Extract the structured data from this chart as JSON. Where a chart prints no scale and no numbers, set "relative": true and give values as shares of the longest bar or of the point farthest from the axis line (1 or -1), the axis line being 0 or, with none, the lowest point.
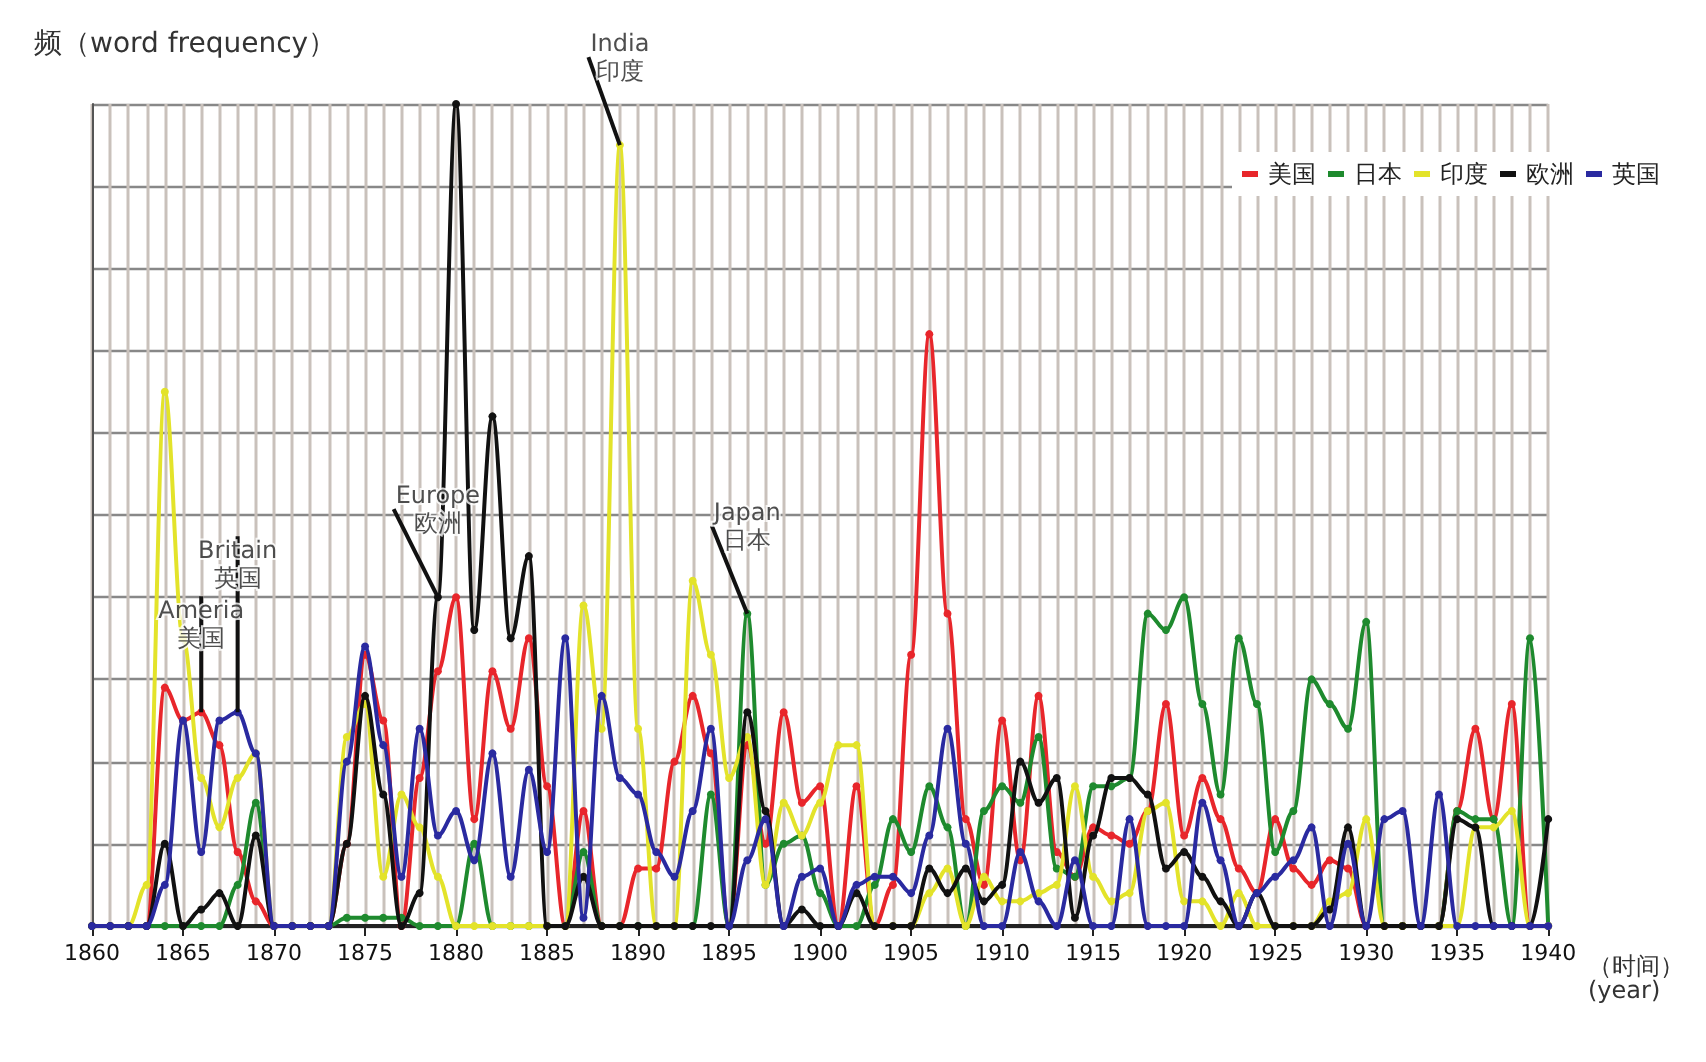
{
  "chart_data": {
    "type": "line",
    "title": "频（word frequency）",
    "xlabel": "（时间）\n(year)",
    "relative": true,
    "x": [
      1860,
      1861,
      1862,
      1863,
      1864,
      1865,
      1866,
      1867,
      1868,
      1869,
      1870,
      1871,
      1872,
      1873,
      1874,
      1875,
      1876,
      1877,
      1878,
      1879,
      1880,
      1881,
      1882,
      1883,
      1884,
      1885,
      1886,
      1887,
      1888,
      1889,
      1890,
      1891,
      1892,
      1893,
      1894,
      1895,
      1896,
      1897,
      1898,
      1899,
      1900,
      1901,
      1902,
      1903,
      1904,
      1905,
      1906,
      1907,
      1908,
      1909,
      1910,
      1911,
      1912,
      1913,
      1914,
      1915,
      1916,
      1917,
      1918,
      1919,
      1920,
      1921,
      1922,
      1923,
      1924,
      1925,
      1926,
      1927,
      1928,
      1929,
      1930,
      1931,
      1932,
      1933,
      1934,
      1935,
      1936,
      1937,
      1938,
      1939,
      1940
    ],
    "xlim": [
      1860,
      1940
    ],
    "xticks": [
      1860,
      1865,
      1870,
      1875,
      1880,
      1885,
      1890,
      1895,
      1900,
      1905,
      1910,
      1915,
      1920,
      1925,
      1930,
      1935,
      1940
    ],
    "grid": true,
    "legend": "top right",
    "marker": "circle",
    "line_style": "solid",
    "series": [
      {
        "name": "美国",
        "color": "#e8262b",
        "values": [
          null,
          null,
          0,
          0,
          0.29,
          0.25,
          0.26,
          0.22,
          0.09,
          0.03,
          0,
          0,
          0,
          0,
          0.1,
          0.33,
          0.25,
          0,
          0.18,
          0.31,
          0.4,
          0.13,
          0.31,
          0.24,
          0.35,
          0.17,
          0,
          0.14,
          0,
          0,
          0.07,
          0.07,
          0.2,
          0.28,
          0.21,
          0,
          0.22,
          0.1,
          0.26,
          0.15,
          0.17,
          0,
          0.17,
          0,
          0.05,
          0.33,
          0.72,
          0.38,
          0.13,
          0.05,
          0.25,
          0.08,
          0.28,
          0.09,
          0.06,
          0.12,
          0.11,
          0.1,
          0.14,
          0.27,
          0.11,
          0.18,
          0.13,
          0.07,
          0.04,
          0.13,
          0.07,
          0.05,
          0.08,
          0.07,
          0,
          0,
          0,
          0,
          0,
          0.14,
          0.24,
          0.13,
          0.27,
          0,
          0
        ]
      },
      {
        "name": "日本",
        "color": "#1e8a2e",
        "values": [
          null,
          null,
          0,
          0,
          0,
          0,
          0,
          0,
          0.05,
          0.15,
          0,
          0,
          0,
          0,
          0.01,
          0.01,
          0.01,
          0.01,
          0,
          0,
          0,
          0.1,
          0,
          0,
          0,
          0,
          0,
          0.09,
          0,
          0,
          0,
          0,
          0,
          0,
          0.16,
          0,
          0.38,
          0.05,
          0.1,
          0.11,
          0.04,
          0,
          0,
          0.05,
          0.13,
          0.09,
          0.17,
          0.12,
          0,
          0.14,
          0.17,
          0.15,
          0.23,
          0.07,
          0.06,
          0.17,
          0.17,
          0.18,
          0.38,
          0.36,
          0.4,
          0.27,
          0.16,
          0.35,
          0.27,
          0.09,
          0.14,
          0.3,
          0.27,
          0.24,
          0.37,
          0,
          0,
          0,
          0,
          0.14,
          0.13,
          0.13,
          0,
          0.35,
          0
        ]
      },
      {
        "name": "印度",
        "color": "#e3e32a",
        "values": [
          0,
          0,
          0,
          0.05,
          0.65,
          0.35,
          0.18,
          0.12,
          0.18,
          0.21,
          0,
          0,
          0,
          0,
          0.23,
          0.27,
          0.06,
          0.16,
          0.12,
          0.06,
          0,
          0,
          0,
          0,
          0,
          0,
          0,
          0.39,
          0.24,
          0.95,
          0.24,
          0,
          0,
          0.42,
          0.33,
          0.18,
          0.23,
          0.05,
          0.15,
          0.11,
          0.15,
          0.22,
          0.22,
          0,
          0,
          0,
          0.04,
          0.07,
          0,
          0.06,
          0.03,
          0.03,
          0.04,
          0.05,
          0.17,
          0.06,
          0.03,
          0.04,
          0.14,
          0.15,
          0.03,
          0.03,
          0,
          0.04,
          0,
          0,
          0,
          0,
          0.03,
          0.04,
          0.13,
          0,
          0,
          0,
          0,
          0,
          0.12,
          0.12,
          0.14,
          0,
          0
        ]
      },
      {
        "name": "欧洲",
        "color": "#111111",
        "values": [
          0,
          0,
          0,
          0,
          0.1,
          0,
          0.02,
          0.04,
          0,
          0.11,
          0,
          0,
          0,
          0,
          0.1,
          0.28,
          0.16,
          0,
          0.04,
          0.4,
          1,
          0.36,
          0.62,
          0.35,
          0.45,
          0,
          0,
          0.06,
          0,
          0,
          0,
          0,
          0,
          0,
          0,
          0,
          0.26,
          0.14,
          0,
          0.02,
          0,
          0,
          0.04,
          0,
          0,
          0,
          0.07,
          0.04,
          0.07,
          0.03,
          0.05,
          0.2,
          0.15,
          0.18,
          0.01,
          0.11,
          0.18,
          0.18,
          0.16,
          0.07,
          0.09,
          0.06,
          0.03,
          0,
          0.04,
          0,
          0,
          0,
          0.02,
          0.12,
          0,
          0,
          0,
          0,
          0,
          0.13,
          0.12,
          0,
          0,
          0,
          0.13
        ]
      },
      {
        "name": "英国",
        "color": "#2a2aa0",
        "values": [
          0,
          0,
          0,
          0,
          0.05,
          0.25,
          0.09,
          0.25,
          0.26,
          0.21,
          0,
          0,
          0,
          0,
          0.2,
          0.34,
          0.22,
          0.06,
          0.24,
          0.11,
          0.14,
          0.08,
          0.21,
          0.06,
          0.19,
          0.09,
          0.35,
          0.01,
          0.28,
          0.18,
          0.16,
          0.09,
          0.06,
          0.14,
          0.24,
          0,
          0.08,
          0.13,
          0,
          0.06,
          0.07,
          0,
          0.05,
          0.06,
          0.06,
          0.04,
          0.11,
          0.24,
          0.1,
          0,
          0,
          0.09,
          0.03,
          0,
          0.08,
          0,
          0,
          0.13,
          0,
          0,
          0,
          0.15,
          0.08,
          0,
          0.04,
          0.06,
          0.08,
          0.12,
          0,
          0.1,
          0,
          0.13,
          0.14,
          0,
          0.16,
          0,
          0,
          0,
          0,
          0,
          0
        ]
      }
    ],
    "annotations": [
      {
        "text": "Ameria\n美国",
        "x": 1866,
        "y": 0.26
      },
      {
        "text": "Britain\n英国",
        "x": 1868,
        "y": 0.26
      },
      {
        "text": "Europe\n欧洲",
        "x": 1879,
        "y": 0.4
      },
      {
        "text": "India\n印度",
        "x": 1889,
        "y": 0.95
      },
      {
        "text": "Japan\n日本",
        "x": 1896,
        "y": 0.38
      }
    ]
  }
}
